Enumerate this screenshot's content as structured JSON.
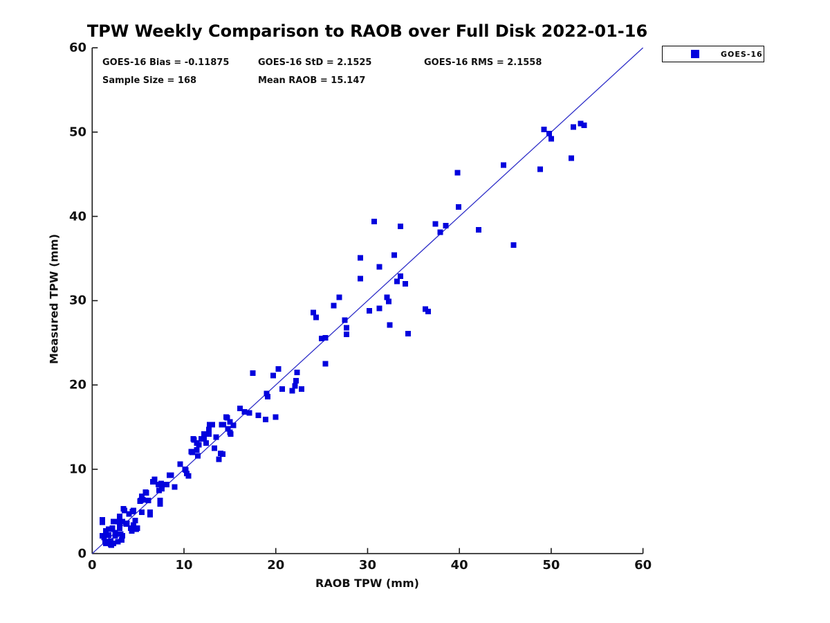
{
  "chart_data": {
    "type": "scatter",
    "title": "TPW Weekly Comparison to RAOB over Full Disk 2022-01-16",
    "xlabel": "RAOB TPW (mm)",
    "ylabel": "Measured TPW (mm)",
    "xlim": [
      0,
      60
    ],
    "ylim": [
      0,
      60
    ],
    "xticks": [
      0,
      10,
      20,
      30,
      40,
      50,
      60
    ],
    "yticks": [
      0,
      10,
      20,
      30,
      40,
      50,
      60
    ],
    "grid": false,
    "legend_position": "outside-top-right",
    "annotations": {
      "bias": "GOES-16 Bias = -0.11875",
      "std": "GOES-16 StD = 2.1525",
      "rms": "GOES-16 RMS = 2.1558",
      "sample": "Sample Size = 168",
      "mean_raob": "Mean RAOB = 15.147"
    },
    "reference_line": {
      "type": "identity",
      "from": [
        0,
        0
      ],
      "to": [
        60,
        60
      ],
      "color": "#2e2ec8"
    },
    "colors": {
      "marker": "#0202dd",
      "axis": "#1a1a1a",
      "text": "#000000"
    },
    "series": [
      {
        "name": "GOES-16",
        "marker": "filled-square",
        "color": "#0202dd",
        "points": [
          [
            1.1,
            2.1
          ],
          [
            1.1,
            3.7
          ],
          [
            1.1,
            4.0
          ],
          [
            1.3,
            1.9
          ],
          [
            1.4,
            1.4
          ],
          [
            1.5,
            1.2
          ],
          [
            1.5,
            2.7
          ],
          [
            1.6,
            2.2
          ],
          [
            1.8,
            2.2
          ],
          [
            1.8,
            2.9
          ],
          [
            2.0,
            1.1
          ],
          [
            2.0,
            1.5
          ],
          [
            2.1,
            1.0
          ],
          [
            2.1,
            2.9
          ],
          [
            2.2,
            3.0
          ],
          [
            2.3,
            1.2
          ],
          [
            2.3,
            3.8
          ],
          [
            2.5,
            2.1
          ],
          [
            2.5,
            2.5
          ],
          [
            2.8,
            1.4
          ],
          [
            2.8,
            3.8
          ],
          [
            3.0,
            3.0
          ],
          [
            3.0,
            3.6
          ],
          [
            3.0,
            4.4
          ],
          [
            3.1,
            2.3
          ],
          [
            3.2,
            1.6
          ],
          [
            3.3,
            2.1
          ],
          [
            3.3,
            3.8
          ],
          [
            3.4,
            5.3
          ],
          [
            3.5,
            5.1
          ],
          [
            3.7,
            3.5
          ],
          [
            3.8,
            3.6
          ],
          [
            4.0,
            4.7
          ],
          [
            4.2,
            3.0
          ],
          [
            4.3,
            2.7
          ],
          [
            4.4,
            5.0
          ],
          [
            4.5,
            3.4
          ],
          [
            4.5,
            5.1
          ],
          [
            4.7,
            3.9
          ],
          [
            4.8,
            2.9
          ],
          [
            4.9,
            3.0
          ],
          [
            5.2,
            6.2
          ],
          [
            5.3,
            6.3
          ],
          [
            5.4,
            4.9
          ],
          [
            5.4,
            6.8
          ],
          [
            5.5,
            6.4
          ],
          [
            5.8,
            7.3
          ],
          [
            5.9,
            7.2
          ],
          [
            6.1,
            6.3
          ],
          [
            6.3,
            4.6
          ],
          [
            6.3,
            4.9
          ],
          [
            6.6,
            8.5
          ],
          [
            6.8,
            8.8
          ],
          [
            7.2,
            8.2
          ],
          [
            7.3,
            7.5
          ],
          [
            7.4,
            5.9
          ],
          [
            7.4,
            6.3
          ],
          [
            7.5,
            8.3
          ],
          [
            7.6,
            7.7
          ],
          [
            8.1,
            8.2
          ],
          [
            8.4,
            9.3
          ],
          [
            8.6,
            9.3
          ],
          [
            9.0,
            7.9
          ],
          [
            9.6,
            10.6
          ],
          [
            10.1,
            10.0
          ],
          [
            10.2,
            9.9
          ],
          [
            10.3,
            9.5
          ],
          [
            10.5,
            9.2
          ],
          [
            10.8,
            12.1
          ],
          [
            10.9,
            12.0
          ],
          [
            11.0,
            13.6
          ],
          [
            11.1,
            13.5
          ],
          [
            11.4,
            12.3
          ],
          [
            11.4,
            13.1
          ],
          [
            11.5,
            11.6
          ],
          [
            11.6,
            12.9
          ],
          [
            11.9,
            13.6
          ],
          [
            12.2,
            13.7
          ],
          [
            12.2,
            14.2
          ],
          [
            12.4,
            13.1
          ],
          [
            12.7,
            14.2
          ],
          [
            12.7,
            14.7
          ],
          [
            12.8,
            15.3
          ],
          [
            13.1,
            15.3
          ],
          [
            13.3,
            12.5
          ],
          [
            13.5,
            13.8
          ],
          [
            13.8,
            11.2
          ],
          [
            14.0,
            11.9
          ],
          [
            14.1,
            15.3
          ],
          [
            14.2,
            11.8
          ],
          [
            14.3,
            15.3
          ],
          [
            14.6,
            16.2
          ],
          [
            14.7,
            16.1
          ],
          [
            14.8,
            14.8
          ],
          [
            15.0,
            14.4
          ],
          [
            15.0,
            15.6
          ],
          [
            15.1,
            14.2
          ],
          [
            15.4,
            15.2
          ],
          [
            16.1,
            17.2
          ],
          [
            16.6,
            16.8
          ],
          [
            17.1,
            16.7
          ],
          [
            17.5,
            21.4
          ],
          [
            18.1,
            16.4
          ],
          [
            18.9,
            15.9
          ],
          [
            19.0,
            19.0
          ],
          [
            19.1,
            18.6
          ],
          [
            19.7,
            21.1
          ],
          [
            20.0,
            16.2
          ],
          [
            20.3,
            21.9
          ],
          [
            20.7,
            19.5
          ],
          [
            21.8,
            19.3
          ],
          [
            22.1,
            19.9
          ],
          [
            22.2,
            20.5
          ],
          [
            22.3,
            21.5
          ],
          [
            22.8,
            19.5
          ],
          [
            24.1,
            28.6
          ],
          [
            24.4,
            28.0
          ],
          [
            25.0,
            25.5
          ],
          [
            25.4,
            22.5
          ],
          [
            25.4,
            25.6
          ],
          [
            26.3,
            29.4
          ],
          [
            26.9,
            30.4
          ],
          [
            27.5,
            27.7
          ],
          [
            27.7,
            26.0
          ],
          [
            27.7,
            26.8
          ],
          [
            29.2,
            32.6
          ],
          [
            29.2,
            35.1
          ],
          [
            30.2,
            28.8
          ],
          [
            30.7,
            39.4
          ],
          [
            31.3,
            29.1
          ],
          [
            31.3,
            34.0
          ],
          [
            32.1,
            30.4
          ],
          [
            32.3,
            29.9
          ],
          [
            32.4,
            27.1
          ],
          [
            32.9,
            35.4
          ],
          [
            33.2,
            32.3
          ],
          [
            33.6,
            32.9
          ],
          [
            33.6,
            38.8
          ],
          [
            34.1,
            32.0
          ],
          [
            34.4,
            26.1
          ],
          [
            36.3,
            29.0
          ],
          [
            36.6,
            28.7
          ],
          [
            37.4,
            39.1
          ],
          [
            37.9,
            38.1
          ],
          [
            38.5,
            38.9
          ],
          [
            39.8,
            45.2
          ],
          [
            39.9,
            41.1
          ],
          [
            42.1,
            38.4
          ],
          [
            44.8,
            46.1
          ],
          [
            45.9,
            36.6
          ],
          [
            48.8,
            45.6
          ],
          [
            49.2,
            50.3
          ],
          [
            49.8,
            49.8
          ],
          [
            50.0,
            49.2
          ],
          [
            52.2,
            46.9
          ],
          [
            52.4,
            50.6
          ],
          [
            53.2,
            51.0
          ],
          [
            53.6,
            50.8
          ]
        ]
      }
    ]
  }
}
